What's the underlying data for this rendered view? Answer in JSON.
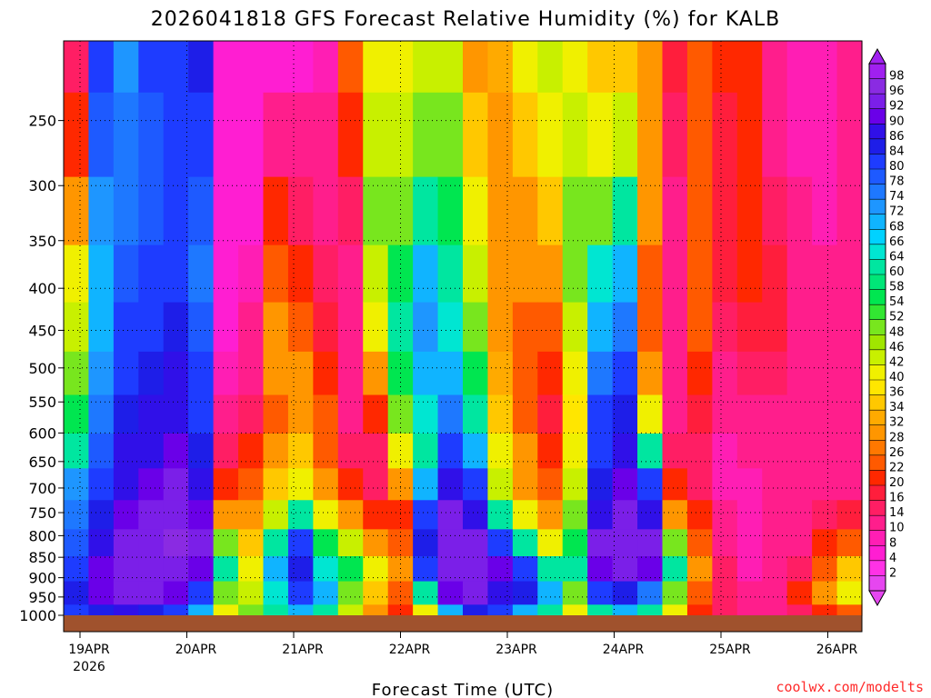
{
  "chart_data": {
    "type": "heatmap",
    "title": "2026041818 GFS Forecast Relative Humidity (%) for KALB",
    "xlabel": "Forecast Time (UTC)",
    "ylabel": "",
    "credit": "coolwx.com/modelts",
    "x_ticks": [
      "19APR",
      "20APR",
      "21APR",
      "22APR",
      "23APR",
      "24APR",
      "25APR",
      "26APR"
    ],
    "x_year_label": "2026",
    "y_ticks": [
      250,
      300,
      350,
      400,
      450,
      500,
      550,
      600,
      650,
      700,
      750,
      800,
      850,
      900,
      950,
      1000
    ],
    "ylim": [
      1000,
      200
    ],
    "y_scale": "log",
    "grid": true,
    "colorbar": {
      "label_values": [
        98,
        96,
        92,
        90,
        86,
        84,
        80,
        78,
        74,
        72,
        68,
        66,
        64,
        60,
        58,
        54,
        52,
        48,
        46,
        42,
        40,
        36,
        34,
        32,
        28,
        26,
        22,
        20,
        16,
        14,
        10,
        8,
        4,
        2
      ],
      "bin_colors": [
        "#a020f0",
        "#8a2be2",
        "#7b1fe8",
        "#6a00e8",
        "#3010e8",
        "#1e1ee8",
        "#1e3cff",
        "#1e5aff",
        "#1e78ff",
        "#1e96ff",
        "#10b4ff",
        "#00d2ff",
        "#00e6d2",
        "#00e6a0",
        "#00e678",
        "#00e650",
        "#32e632",
        "#78e61e",
        "#a0e600",
        "#c8f000",
        "#f0f000",
        "#ffe600",
        "#ffc800",
        "#ffaa00",
        "#ff9600",
        "#ff7800",
        "#ff5a00",
        "#ff2800",
        "#ff1e3c",
        "#ff1e64",
        "#ff1e8c",
        "#ff1eb4",
        "#ff1ed2",
        "#ff32e6",
        "#e646f0"
      ]
    },
    "values_rh_by_time_row_levels_1000_to_200": [
      [
        80,
        85,
        82,
        78,
        75,
        72,
        60,
        55,
        50,
        45,
        40,
        30,
        20,
        15
      ],
      [
        85,
        90,
        90,
        88,
        85,
        80,
        78,
        75,
        72,
        70,
        68,
        72,
        78,
        80
      ],
      [
        88,
        92,
        94,
        92,
        90,
        88,
        86,
        84,
        82,
        80,
        78,
        76,
        74,
        72
      ],
      [
        85,
        92,
        95,
        94,
        92,
        90,
        88,
        86,
        85,
        82,
        80,
        78,
        78,
        80
      ],
      [
        80,
        90,
        95,
        96,
        94,
        92,
        90,
        88,
        86,
        84,
        82,
        80,
        80,
        82
      ],
      [
        70,
        80,
        90,
        92,
        90,
        88,
        85,
        82,
        80,
        78,
        75,
        78,
        82,
        85
      ],
      [
        40,
        50,
        60,
        50,
        30,
        20,
        15,
        10,
        8,
        6,
        5,
        4,
        4,
        4
      ],
      [
        50,
        45,
        40,
        35,
        30,
        25,
        20,
        15,
        12,
        10,
        8,
        6,
        5,
        4
      ],
      [
        60,
        65,
        70,
        60,
        45,
        35,
        30,
        25,
        28,
        30,
        25,
        20,
        10,
        6
      ],
      [
        70,
        80,
        85,
        80,
        60,
        40,
        35,
        30,
        28,
        25,
        20,
        15,
        10,
        6
      ],
      [
        60,
        70,
        65,
        55,
        40,
        30,
        25,
        22,
        20,
        18,
        15,
        12,
        10,
        8
      ],
      [
        45,
        50,
        55,
        45,
        30,
        20,
        15,
        12,
        10,
        10,
        12,
        15,
        20,
        25
      ],
      [
        30,
        35,
        40,
        30,
        20,
        15,
        15,
        20,
        30,
        40,
        45,
        50,
        45,
        40
      ],
      [
        20,
        25,
        30,
        25,
        20,
        30,
        40,
        50,
        55,
        60,
        55,
        50,
        45,
        40
      ],
      [
        40,
        60,
        80,
        85,
        80,
        70,
        60,
        65,
        70,
        72,
        68,
        60,
        50,
        45
      ],
      [
        70,
        90,
        94,
        94,
        92,
        88,
        80,
        75,
        70,
        65,
        60,
        55,
        50,
        45
      ],
      [
        85,
        92,
        94,
        92,
        88,
        80,
        70,
        60,
        55,
        50,
        45,
        40,
        35,
        30
      ],
      [
        80,
        88,
        90,
        80,
        60,
        45,
        40,
        35,
        32,
        30,
        30,
        28,
        30,
        32
      ],
      [
        70,
        85,
        80,
        60,
        40,
        30,
        28,
        25,
        25,
        25,
        28,
        30,
        35,
        40
      ],
      [
        60,
        70,
        60,
        40,
        30,
        22,
        20,
        18,
        20,
        25,
        30,
        35,
        40,
        42
      ],
      [
        40,
        50,
        60,
        55,
        50,
        45,
        40,
        38,
        40,
        45,
        48,
        50,
        45,
        40
      ],
      [
        60,
        80,
        90,
        92,
        88,
        85,
        82,
        80,
        75,
        70,
        65,
        50,
        40,
        35
      ],
      [
        70,
        85,
        92,
        94,
        92,
        90,
        88,
        85,
        80,
        75,
        70,
        60,
        45,
        35
      ],
      [
        60,
        75,
        90,
        92,
        88,
        80,
        60,
        40,
        30,
        25,
        25,
        30,
        30,
        30
      ],
      [
        40,
        50,
        60,
        50,
        30,
        20,
        15,
        12,
        10,
        10,
        10,
        12,
        15,
        18
      ],
      [
        20,
        25,
        30,
        25,
        20,
        15,
        15,
        18,
        20,
        22,
        25,
        25,
        25,
        25
      ],
      [
        15,
        15,
        15,
        12,
        10,
        8,
        8,
        10,
        12,
        15,
        18,
        18,
        18,
        20
      ],
      [
        10,
        10,
        8,
        8,
        8,
        8,
        10,
        12,
        15,
        18,
        20,
        20,
        20,
        20
      ],
      [
        10,
        12,
        12,
        10,
        10,
        10,
        10,
        12,
        14,
        16,
        16,
        14,
        12,
        10
      ],
      [
        15,
        20,
        15,
        12,
        10,
        10,
        10,
        10,
        10,
        12,
        12,
        10,
        8,
        8
      ],
      [
        20,
        30,
        25,
        20,
        15,
        12,
        10,
        10,
        10,
        10,
        10,
        8,
        8,
        8
      ],
      [
        25,
        40,
        35,
        25,
        18,
        12,
        10,
        10,
        10,
        10,
        10,
        10,
        10,
        12
      ]
    ]
  }
}
